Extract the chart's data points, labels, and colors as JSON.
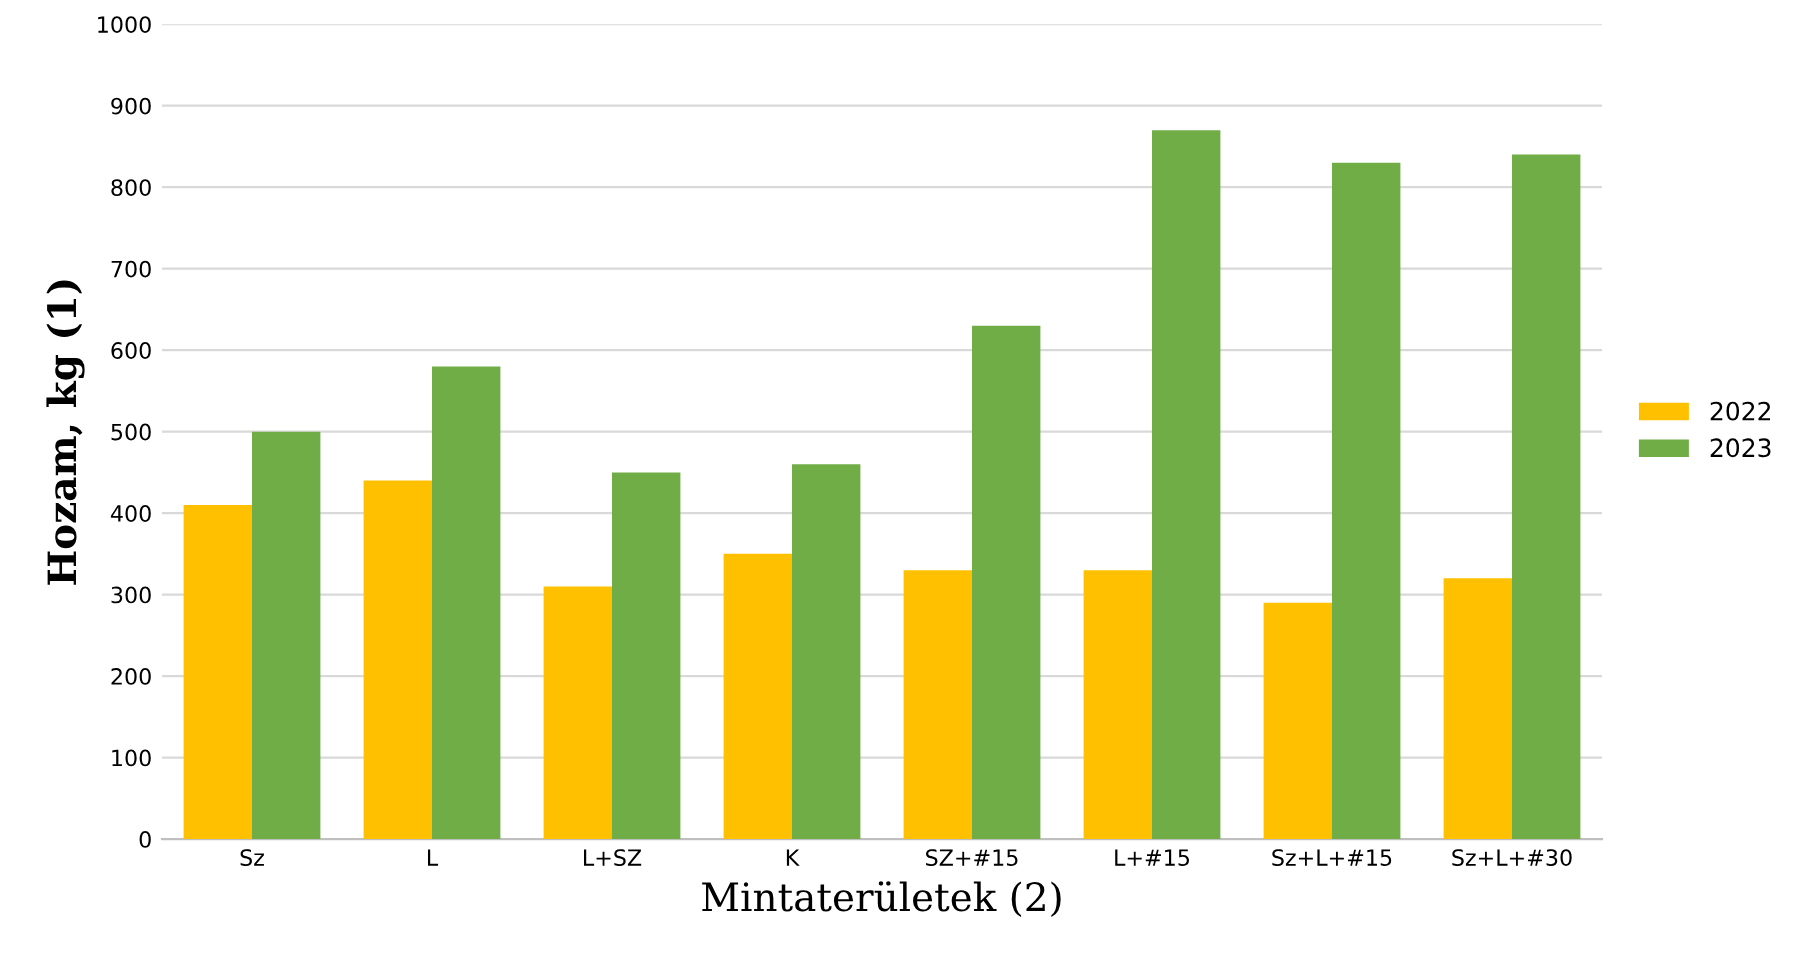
{
  "chart_data": {
    "type": "bar",
    "xlabel": "Mintaterületek (2)",
    "ylabel": "Hozam, kg (1)",
    "categories": [
      "Sz",
      "L",
      "L+SZ",
      "K",
      "SZ+#15",
      "L+#15",
      "Sz+L+#15",
      "Sz+L+#30"
    ],
    "series": [
      {
        "name": "2022",
        "color": "#ffc000",
        "values": [
          410,
          440,
          310,
          350,
          330,
          330,
          290,
          320
        ]
      },
      {
        "name": "2023",
        "color": "#70ad47",
        "values": [
          500,
          580,
          450,
          460,
          630,
          870,
          830,
          840
        ]
      }
    ],
    "ylim": [
      0,
      1000
    ],
    "yticks": [
      0,
      100,
      200,
      300,
      400,
      500,
      600,
      700,
      800,
      900,
      1000
    ],
    "grid": "y",
    "legend": "right"
  }
}
